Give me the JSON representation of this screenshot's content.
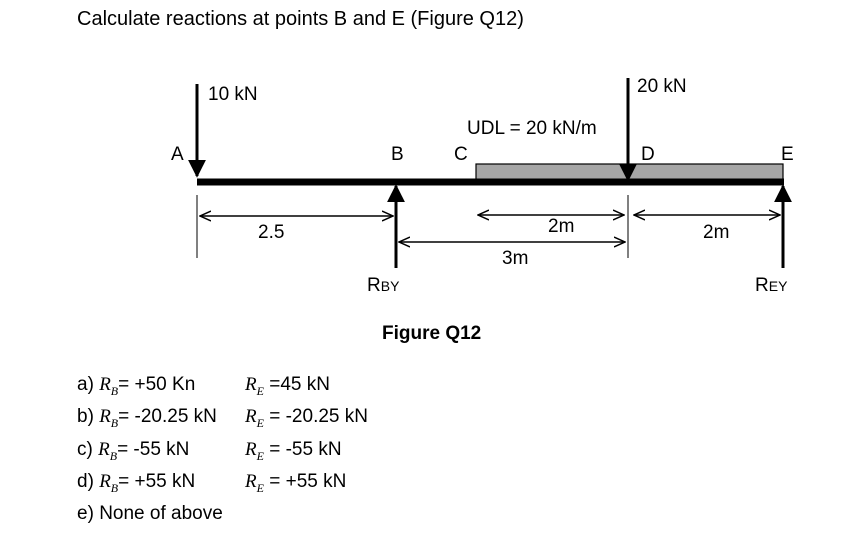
{
  "question": "Calculate reactions at points B and E (Figure Q12)",
  "figure": {
    "caption": "Figure Q12",
    "points": {
      "A": "A",
      "B": "B",
      "C": "C",
      "D": "D",
      "E": "E"
    },
    "loads": {
      "point_load_A": "10 kN",
      "point_load_D": "20 kN",
      "udl": "UDL = 20 kN/m"
    },
    "dimensions": {
      "AB": "2.5",
      "CD": "2m",
      "BD": "3m",
      "DE": "2m"
    },
    "reactions": {
      "RB": {
        "main": "R",
        "sub": "BY"
      },
      "RE": {
        "main": "R",
        "sub": "EY"
      }
    },
    "colors": {
      "beam": "#000000",
      "udl_fill": "#a6a6a6"
    }
  },
  "options": [
    {
      "letter": "a)",
      "rb_value": "= +50 Kn",
      "re_value": " =45 kN"
    },
    {
      "letter": "b)",
      "rb_value": "= -20.25 kN",
      "re_value": " = -20.25 kN"
    },
    {
      "letter": "c)",
      "rb_value": "= -55 kN",
      "re_value": " = -55 kN"
    },
    {
      "letter": "d)",
      "rb_value": "= +55 kN",
      "re_value": " = +55 kN"
    },
    {
      "letter": "e)",
      "text": "None of above"
    }
  ],
  "symbols": {
    "R": "R",
    "B": "B",
    "E": "E"
  }
}
